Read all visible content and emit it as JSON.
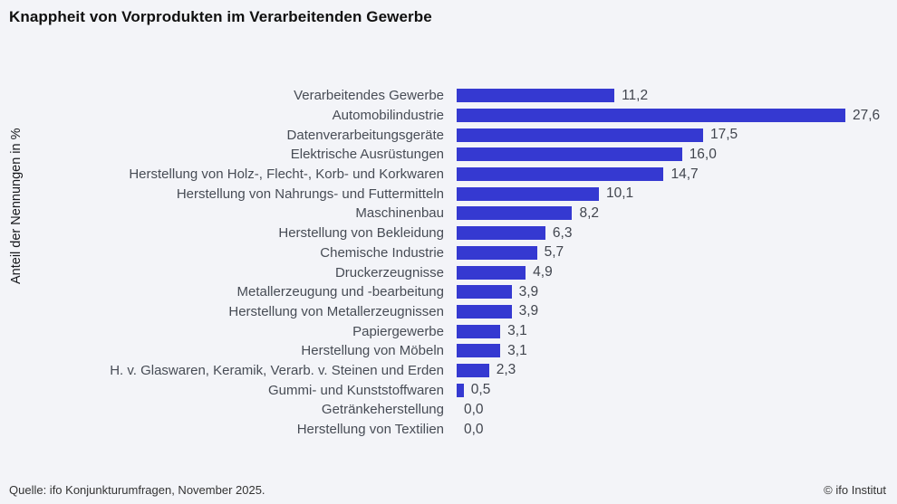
{
  "title": "Knappheit von Vorprodukten im Verarbeitenden Gewerbe",
  "y_axis_label": "Anteil der Nennungen in %",
  "footer": {
    "source": "Quelle: ifo Konjunkturumfragen, November 2025.",
    "copyright": "© ifo Institut"
  },
  "colors": {
    "bar": "#3539d1",
    "background": "#f3f4f8",
    "label_text": "#474c55",
    "value_text": "#41454e",
    "title_text": "#101010",
    "footer_text": "#333333"
  },
  "chart_data": {
    "type": "bar",
    "orientation": "horizontal",
    "title": "Knappheit von Vorprodukten im Verarbeitenden Gewerbe",
    "ylabel": "Anteil der Nennungen in %",
    "xlabel": "",
    "xlim": [
      0,
      28
    ],
    "grid": false,
    "legend": "none",
    "value_decimal_separator": ",",
    "categories": [
      "Verarbeitendes Gewerbe",
      "Automobilindustrie",
      "Datenverarbeitungsgeräte",
      "Elektrische Ausrüstungen",
      "Herstellung von Holz-, Flecht-, Korb- und Korkwaren",
      "Herstellung von Nahrungs- und Futtermitteln",
      "Maschinenbau",
      "Herstellung von Bekleidung",
      "Chemische Industrie",
      "Druckerzeugnisse",
      "Metallerzeugung und -bearbeitung",
      "Herstellung von Metallerzeugnissen",
      "Papiergewerbe",
      "Herstellung von Möbeln",
      "H. v. Glaswaren, Keramik, Verarb. v. Steinen und Erden",
      "Gummi- und Kunststoffwaren",
      "Getränkeherstellung",
      "Herstellung von Textilien"
    ],
    "values": [
      11.2,
      27.6,
      17.5,
      16.0,
      14.7,
      10.1,
      8.2,
      6.3,
      5.7,
      4.9,
      3.9,
      3.9,
      3.1,
      3.1,
      2.3,
      0.5,
      0.0,
      0.0
    ],
    "value_labels": [
      "11,2",
      "27,6",
      "17,5",
      "16,0",
      "14,7",
      "10,1",
      "8,2",
      "6,3",
      "5,7",
      "4,9",
      "3,9",
      "3,9",
      "3,1",
      "3,1",
      "2,3",
      "0,5",
      "0,0",
      "0,0"
    ]
  }
}
